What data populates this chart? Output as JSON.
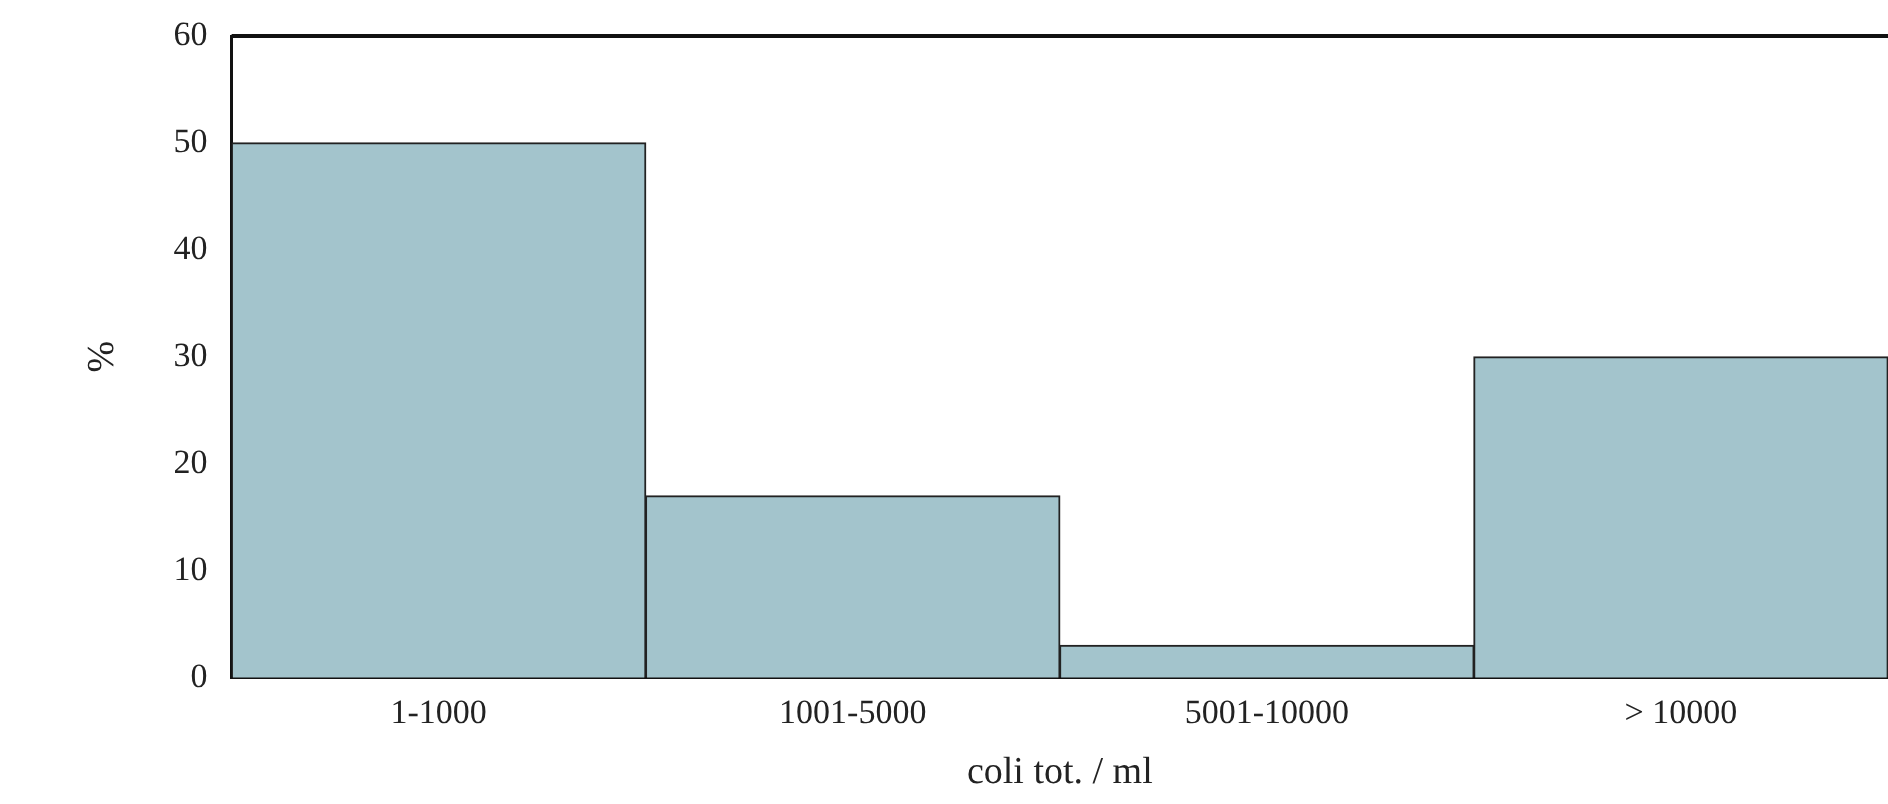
{
  "chart_data": {
    "type": "bar",
    "xlabel": "coli tot. / ml",
    "ylabel": "%",
    "categories": [
      "1-1000",
      "1001-5000",
      "5001-10000",
      "> 10000"
    ],
    "values": [
      50,
      17,
      3,
      30
    ],
    "color": "#a3c4cc",
    "ylim": [
      0,
      60
    ],
    "yticks": [
      0,
      10,
      20,
      30,
      40,
      50,
      60
    ],
    "grid": false
  }
}
